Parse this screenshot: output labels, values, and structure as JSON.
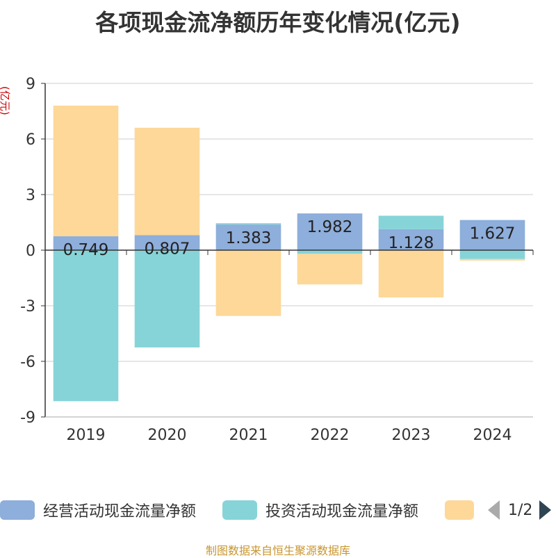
{
  "title": "各项现金流净额历年变化情况(亿元)",
  "unit_label": "(亿元)",
  "source": "制图数据来自恒生聚源数据库",
  "legend_page": "1/2",
  "legend_items": [
    {
      "label": "经营活动现金流量净额",
      "color": "#8eaedb"
    },
    {
      "label": "投资活动现金流量净额",
      "color": "#86d4d8"
    },
    {
      "label": "",
      "color": "#fdd898"
    }
  ],
  "chart_data": {
    "type": "bar",
    "stacked": true,
    "categories": [
      "2019",
      "2020",
      "2021",
      "2022",
      "2023",
      "2024"
    ],
    "ylim": [
      -9,
      9
    ],
    "yticks": [
      -9,
      -6,
      -3,
      0,
      3,
      6,
      9
    ],
    "grid": true,
    "legend_position": "bottom",
    "series": [
      {
        "name": "经营活动现金流量净额",
        "color": "#8eaedb",
        "values": [
          0.749,
          0.807,
          1.383,
          1.982,
          1.128,
          1.627
        ],
        "labels": [
          "0.749",
          "0.807",
          "1.383",
          "1.982",
          "1.128",
          "1.627"
        ]
      },
      {
        "name": "投资活动现金流量净额",
        "color": "#86d4d8",
        "values": [
          -8.15,
          -5.25,
          0.07,
          -0.2,
          0.73,
          -0.48
        ]
      },
      {
        "color": "#fdd898",
        "values": [
          7.05,
          5.8,
          -3.55,
          -1.65,
          -2.55,
          -0.08
        ]
      }
    ]
  }
}
